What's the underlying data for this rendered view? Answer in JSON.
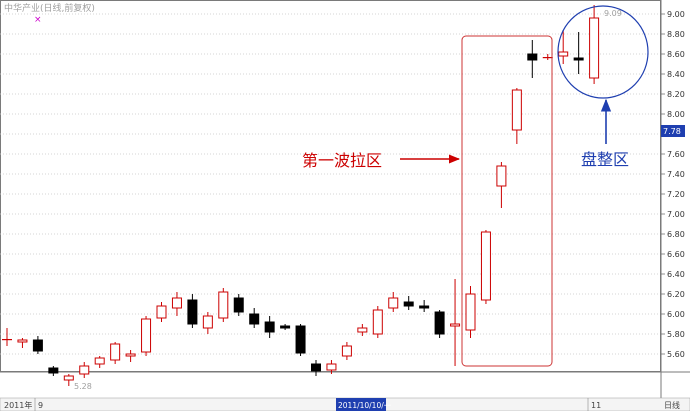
{
  "header": {
    "title": "中华产业(日线,前复权)",
    "marker": "×"
  },
  "annotations": {
    "wave": "第一波拉区",
    "consolidation": "盘整区"
  },
  "price_tag": "7.78",
  "low_label": "5.28",
  "high_label": "9.09",
  "xaxis": {
    "year_label": "2011年",
    "month_label": "9",
    "date_label": "2011/10/10/一",
    "last_label": "11",
    "right_label": "日线"
  },
  "colors": {
    "up": "#cc0000",
    "down": "#000000",
    "annotation_red": "#cc0000",
    "annotation_blue": "#1f3fb0",
    "grid": "#c8c8c8",
    "price_tag_bg": "#1f3fb0"
  },
  "chart_data": {
    "type": "candlestick",
    "ylim": [
      5.3,
      9.1
    ],
    "yticks": [
      9.0,
      8.8,
      8.6,
      8.4,
      8.2,
      8.0,
      7.8,
      7.6,
      7.4,
      7.2,
      7.0,
      6.8,
      6.6,
      6.4,
      6.2,
      6.0,
      5.8,
      5.6,
      5.4
    ],
    "candles": [
      {
        "o": 5.74,
        "h": 5.86,
        "l": 5.68,
        "c": 5.75
      },
      {
        "o": 5.72,
        "h": 5.76,
        "l": 5.66,
        "c": 5.74
      },
      {
        "o": 5.74,
        "h": 5.78,
        "l": 5.6,
        "c": 5.63
      },
      {
        "o": 5.46,
        "h": 5.48,
        "l": 5.38,
        "c": 5.41
      },
      {
        "o": 5.34,
        "h": 5.4,
        "l": 5.28,
        "c": 5.38
      },
      {
        "o": 5.4,
        "h": 5.52,
        "l": 5.36,
        "c": 5.48
      },
      {
        "o": 5.5,
        "h": 5.58,
        "l": 5.46,
        "c": 5.56
      },
      {
        "o": 5.54,
        "h": 5.72,
        "l": 5.5,
        "c": 5.7
      },
      {
        "o": 5.58,
        "h": 5.64,
        "l": 5.52,
        "c": 5.6
      },
      {
        "o": 5.62,
        "h": 5.98,
        "l": 5.58,
        "c": 5.95
      },
      {
        "o": 5.96,
        "h": 6.12,
        "l": 5.92,
        "c": 6.08
      },
      {
        "o": 6.06,
        "h": 6.22,
        "l": 5.98,
        "c": 6.16
      },
      {
        "o": 6.14,
        "h": 6.2,
        "l": 5.86,
        "c": 5.9
      },
      {
        "o": 5.86,
        "h": 6.02,
        "l": 5.8,
        "c": 5.98
      },
      {
        "o": 5.96,
        "h": 6.26,
        "l": 5.92,
        "c": 6.22
      },
      {
        "o": 6.16,
        "h": 6.2,
        "l": 5.98,
        "c": 6.02
      },
      {
        "o": 6.0,
        "h": 6.06,
        "l": 5.86,
        "c": 5.9
      },
      {
        "o": 5.92,
        "h": 5.98,
        "l": 5.76,
        "c": 5.82
      },
      {
        "o": 5.88,
        "h": 5.9,
        "l": 5.84,
        "c": 5.86
      },
      {
        "o": 5.88,
        "h": 5.9,
        "l": 5.58,
        "c": 5.61
      },
      {
        "o": 5.5,
        "h": 5.54,
        "l": 5.38,
        "c": 5.43
      },
      {
        "o": 5.44,
        "h": 5.54,
        "l": 5.4,
        "c": 5.5
      },
      {
        "o": 5.58,
        "h": 5.72,
        "l": 5.54,
        "c": 5.68
      },
      {
        "o": 5.82,
        "h": 5.9,
        "l": 5.78,
        "c": 5.86
      },
      {
        "o": 5.8,
        "h": 6.08,
        "l": 5.76,
        "c": 6.04
      },
      {
        "o": 6.06,
        "h": 6.22,
        "l": 6.02,
        "c": 6.16
      },
      {
        "o": 6.12,
        "h": 6.18,
        "l": 6.04,
        "c": 6.08
      },
      {
        "o": 6.08,
        "h": 6.14,
        "l": 6.02,
        "c": 6.06
      },
      {
        "o": 6.02,
        "h": 6.04,
        "l": 5.76,
        "c": 5.8
      },
      {
        "o": 5.88,
        "h": 6.35,
        "l": 5.48,
        "c": 5.9
      },
      {
        "o": 5.84,
        "h": 6.28,
        "l": 5.76,
        "c": 6.2
      },
      {
        "o": 6.14,
        "h": 6.84,
        "l": 6.1,
        "c": 6.82
      },
      {
        "o": 7.28,
        "h": 7.52,
        "l": 7.06,
        "c": 7.48
      },
      {
        "o": 7.84,
        "h": 8.26,
        "l": 7.7,
        "c": 8.24
      },
      {
        "o": 8.6,
        "h": 8.74,
        "l": 8.36,
        "c": 8.54
      },
      {
        "o": 8.56,
        "h": 8.6,
        "l": 8.54,
        "c": 8.57
      },
      {
        "o": 8.58,
        "h": 8.84,
        "l": 8.5,
        "c": 8.62
      },
      {
        "o": 8.56,
        "h": 8.82,
        "l": 8.4,
        "c": 8.54
      },
      {
        "o": 8.36,
        "h": 9.09,
        "l": 8.3,
        "c": 8.96
      }
    ]
  }
}
